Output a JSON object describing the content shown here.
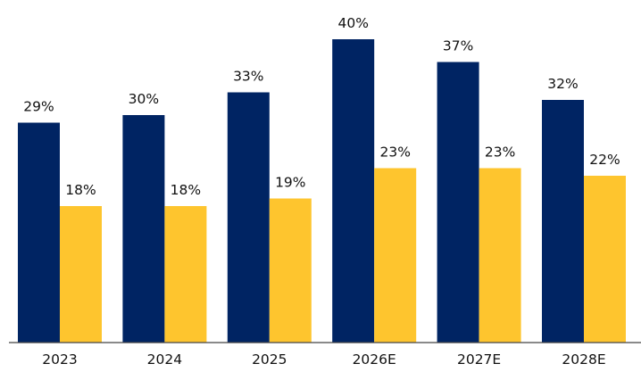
{
  "chart_data": {
    "type": "bar",
    "categories": [
      "2023",
      "2024",
      "2025",
      "2026E",
      "2027E",
      "2028E"
    ],
    "series": [
      {
        "values": [
          29,
          30,
          33,
          40,
          37,
          32
        ],
        "color": "#002463",
        "value_labels": [
          "29%",
          "30%",
          "33%",
          "40%",
          "37%",
          "32%"
        ]
      },
      {
        "values": [
          18,
          18,
          19,
          23,
          23,
          22
        ],
        "color": "#FEC52E",
        "value_labels": [
          "18%",
          "18%",
          "19%",
          "23%",
          "23%",
          "22%"
        ]
      }
    ],
    "ylim": [
      0,
      40
    ],
    "grid": false,
    "legend": "none"
  }
}
